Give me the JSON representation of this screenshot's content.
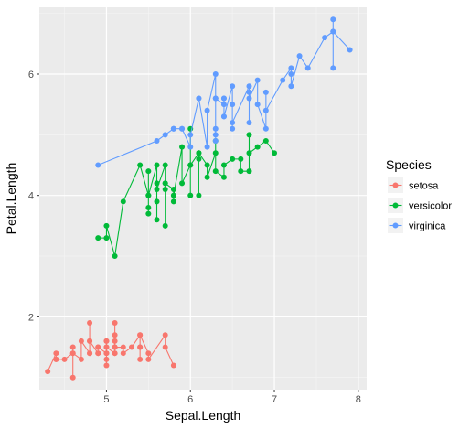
{
  "chart_data": {
    "type": "line",
    "xlabel": "Sepal.Length",
    "ylabel": "Petal.Length",
    "xlim": [
      4.2,
      8.1
    ],
    "ylim": [
      0.8,
      7.1
    ],
    "x_ticks": [
      5,
      6,
      7,
      8
    ],
    "y_ticks": [
      2,
      4,
      6
    ],
    "grid": true,
    "legend": {
      "title": "Species",
      "position": "right"
    },
    "series": [
      {
        "name": "setosa",
        "color": "#F8766D",
        "points": [
          [
            4.3,
            1.1
          ],
          [
            4.4,
            1.4
          ],
          [
            4.4,
            1.3
          ],
          [
            4.4,
            1.3
          ],
          [
            4.5,
            1.3
          ],
          [
            4.6,
            1.4
          ],
          [
            4.6,
            1.5
          ],
          [
            4.6,
            1.0
          ],
          [
            4.6,
            1.4
          ],
          [
            4.7,
            1.3
          ],
          [
            4.7,
            1.6
          ],
          [
            4.8,
            1.4
          ],
          [
            4.8,
            1.6
          ],
          [
            4.8,
            1.4
          ],
          [
            4.8,
            1.9
          ],
          [
            4.8,
            1.6
          ],
          [
            4.9,
            1.4
          ],
          [
            4.9,
            1.5
          ],
          [
            4.9,
            1.4
          ],
          [
            4.9,
            1.5
          ],
          [
            5.0,
            1.4
          ],
          [
            5.0,
            1.5
          ],
          [
            5.0,
            1.6
          ],
          [
            5.0,
            1.2
          ],
          [
            5.0,
            1.3
          ],
          [
            5.0,
            1.6
          ],
          [
            5.0,
            1.4
          ],
          [
            5.0,
            1.5
          ],
          [
            5.1,
            1.4
          ],
          [
            5.1,
            1.5
          ],
          [
            5.1,
            1.9
          ],
          [
            5.1,
            1.6
          ],
          [
            5.1,
            1.5
          ],
          [
            5.1,
            1.7
          ],
          [
            5.1,
            1.4
          ],
          [
            5.1,
            1.5
          ],
          [
            5.2,
            1.5
          ],
          [
            5.2,
            1.4
          ],
          [
            5.3,
            1.5
          ],
          [
            5.4,
            1.7
          ],
          [
            5.4,
            1.5
          ],
          [
            5.4,
            1.5
          ],
          [
            5.4,
            1.3
          ],
          [
            5.4,
            1.7
          ],
          [
            5.5,
            1.4
          ],
          [
            5.5,
            1.3
          ],
          [
            5.7,
            1.7
          ],
          [
            5.7,
            1.5
          ],
          [
            5.8,
            1.2
          ]
        ]
      },
      {
        "name": "versicolor",
        "color": "#00BA38",
        "points": [
          [
            4.9,
            3.3
          ],
          [
            5.0,
            3.3
          ],
          [
            5.0,
            3.5
          ],
          [
            5.1,
            3.0
          ],
          [
            5.2,
            3.9
          ],
          [
            5.4,
            4.5
          ],
          [
            5.5,
            4.0
          ],
          [
            5.5,
            3.8
          ],
          [
            5.5,
            3.7
          ],
          [
            5.5,
            4.4
          ],
          [
            5.5,
            4.0
          ],
          [
            5.6,
            4.5
          ],
          [
            5.6,
            4.2
          ],
          [
            5.6,
            3.6
          ],
          [
            5.6,
            3.9
          ],
          [
            5.6,
            4.1
          ],
          [
            5.7,
            4.5
          ],
          [
            5.7,
            3.5
          ],
          [
            5.7,
            4.2
          ],
          [
            5.7,
            4.1
          ],
          [
            5.7,
            4.2
          ],
          [
            5.8,
            4.1
          ],
          [
            5.8,
            3.9
          ],
          [
            5.8,
            4.0
          ],
          [
            5.9,
            4.8
          ],
          [
            5.9,
            4.2
          ],
          [
            6.0,
            4.5
          ],
          [
            6.0,
            5.1
          ],
          [
            6.0,
            4.0
          ],
          [
            6.0,
            4.5
          ],
          [
            6.1,
            4.7
          ],
          [
            6.1,
            4.0
          ],
          [
            6.1,
            4.6
          ],
          [
            6.1,
            4.7
          ],
          [
            6.2,
            4.5
          ],
          [
            6.2,
            4.3
          ],
          [
            6.3,
            4.7
          ],
          [
            6.3,
            4.9
          ],
          [
            6.3,
            4.4
          ],
          [
            6.4,
            4.3
          ],
          [
            6.4,
            4.5
          ],
          [
            6.5,
            4.6
          ],
          [
            6.6,
            4.6
          ],
          [
            6.6,
            4.4
          ],
          [
            6.7,
            4.4
          ],
          [
            6.7,
            5.0
          ],
          [
            6.7,
            4.7
          ],
          [
            6.8,
            4.8
          ],
          [
            6.9,
            4.9
          ],
          [
            7.0,
            4.7
          ]
        ]
      },
      {
        "name": "virginica",
        "color": "#619CFF",
        "points": [
          [
            4.9,
            4.5
          ],
          [
            5.6,
            4.9
          ],
          [
            5.7,
            5.0
          ],
          [
            5.8,
            5.1
          ],
          [
            5.8,
            5.1
          ],
          [
            5.8,
            5.1
          ],
          [
            5.9,
            5.1
          ],
          [
            5.9,
            5.1
          ],
          [
            6.0,
            4.8
          ],
          [
            6.0,
            5.0
          ],
          [
            6.1,
            5.6
          ],
          [
            6.1,
            5.6
          ],
          [
            6.2,
            4.8
          ],
          [
            6.2,
            5.4
          ],
          [
            6.3,
            6.0
          ],
          [
            6.3,
            5.1
          ],
          [
            6.3,
            5.6
          ],
          [
            6.3,
            4.9
          ],
          [
            6.3,
            5.0
          ],
          [
            6.3,
            5.6
          ],
          [
            6.4,
            5.5
          ],
          [
            6.4,
            5.3
          ],
          [
            6.4,
            5.6
          ],
          [
            6.4,
            5.6
          ],
          [
            6.4,
            5.3
          ],
          [
            6.5,
            5.8
          ],
          [
            6.5,
            5.1
          ],
          [
            6.5,
            5.5
          ],
          [
            6.5,
            5.2
          ],
          [
            6.7,
            5.8
          ],
          [
            6.7,
            5.7
          ],
          [
            6.7,
            5.2
          ],
          [
            6.7,
            5.6
          ],
          [
            6.8,
            5.9
          ],
          [
            6.8,
            5.5
          ],
          [
            6.9,
            5.1
          ],
          [
            6.9,
            5.7
          ],
          [
            6.9,
            5.4
          ],
          [
            7.1,
            5.9
          ],
          [
            7.2,
            6.1
          ],
          [
            7.2,
            6.0
          ],
          [
            7.2,
            5.8
          ],
          [
            7.3,
            6.3
          ],
          [
            7.4,
            6.1
          ],
          [
            7.6,
            6.6
          ],
          [
            7.7,
            6.7
          ],
          [
            7.7,
            6.9
          ],
          [
            7.7,
            6.1
          ],
          [
            7.7,
            6.7
          ],
          [
            7.9,
            6.4
          ]
        ]
      }
    ]
  }
}
